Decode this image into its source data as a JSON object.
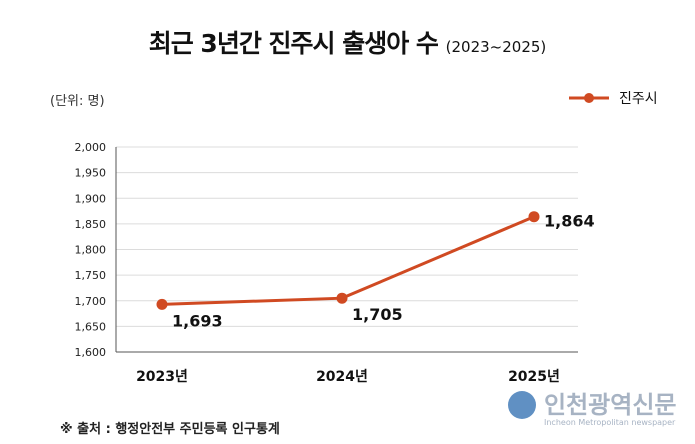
{
  "chart_data": {
    "type": "line",
    "title": "최근 3년간 진주시 출생아 수",
    "subtitle": "(2023~2025)",
    "unit_label": "(단위: 명)",
    "categories": [
      "2023년",
      "2024년",
      "2025년"
    ],
    "series": [
      {
        "name": "진주시",
        "values": [
          1693,
          1705,
          1864
        ],
        "labels": [
          "1,693",
          "1,705",
          "1,864"
        ],
        "color": "#d04a22"
      }
    ],
    "ylim": [
      1600,
      2000
    ],
    "yticks": [
      1600,
      1650,
      1700,
      1750,
      1800,
      1850,
      1900,
      1950,
      2000
    ],
    "ytick_labels": [
      "1,600",
      "1,650",
      "1,700",
      "1,750",
      "1,800",
      "1,850",
      "1,900",
      "1,950",
      "2,000"
    ],
    "grid": true,
    "legend_position": "top-right",
    "source": "※ 출처 : 행정안전부 주민등록 인구통계"
  },
  "watermark": {
    "name": "인천광역신문",
    "subtitle": "Incheon Metropolitan newspaper"
  }
}
